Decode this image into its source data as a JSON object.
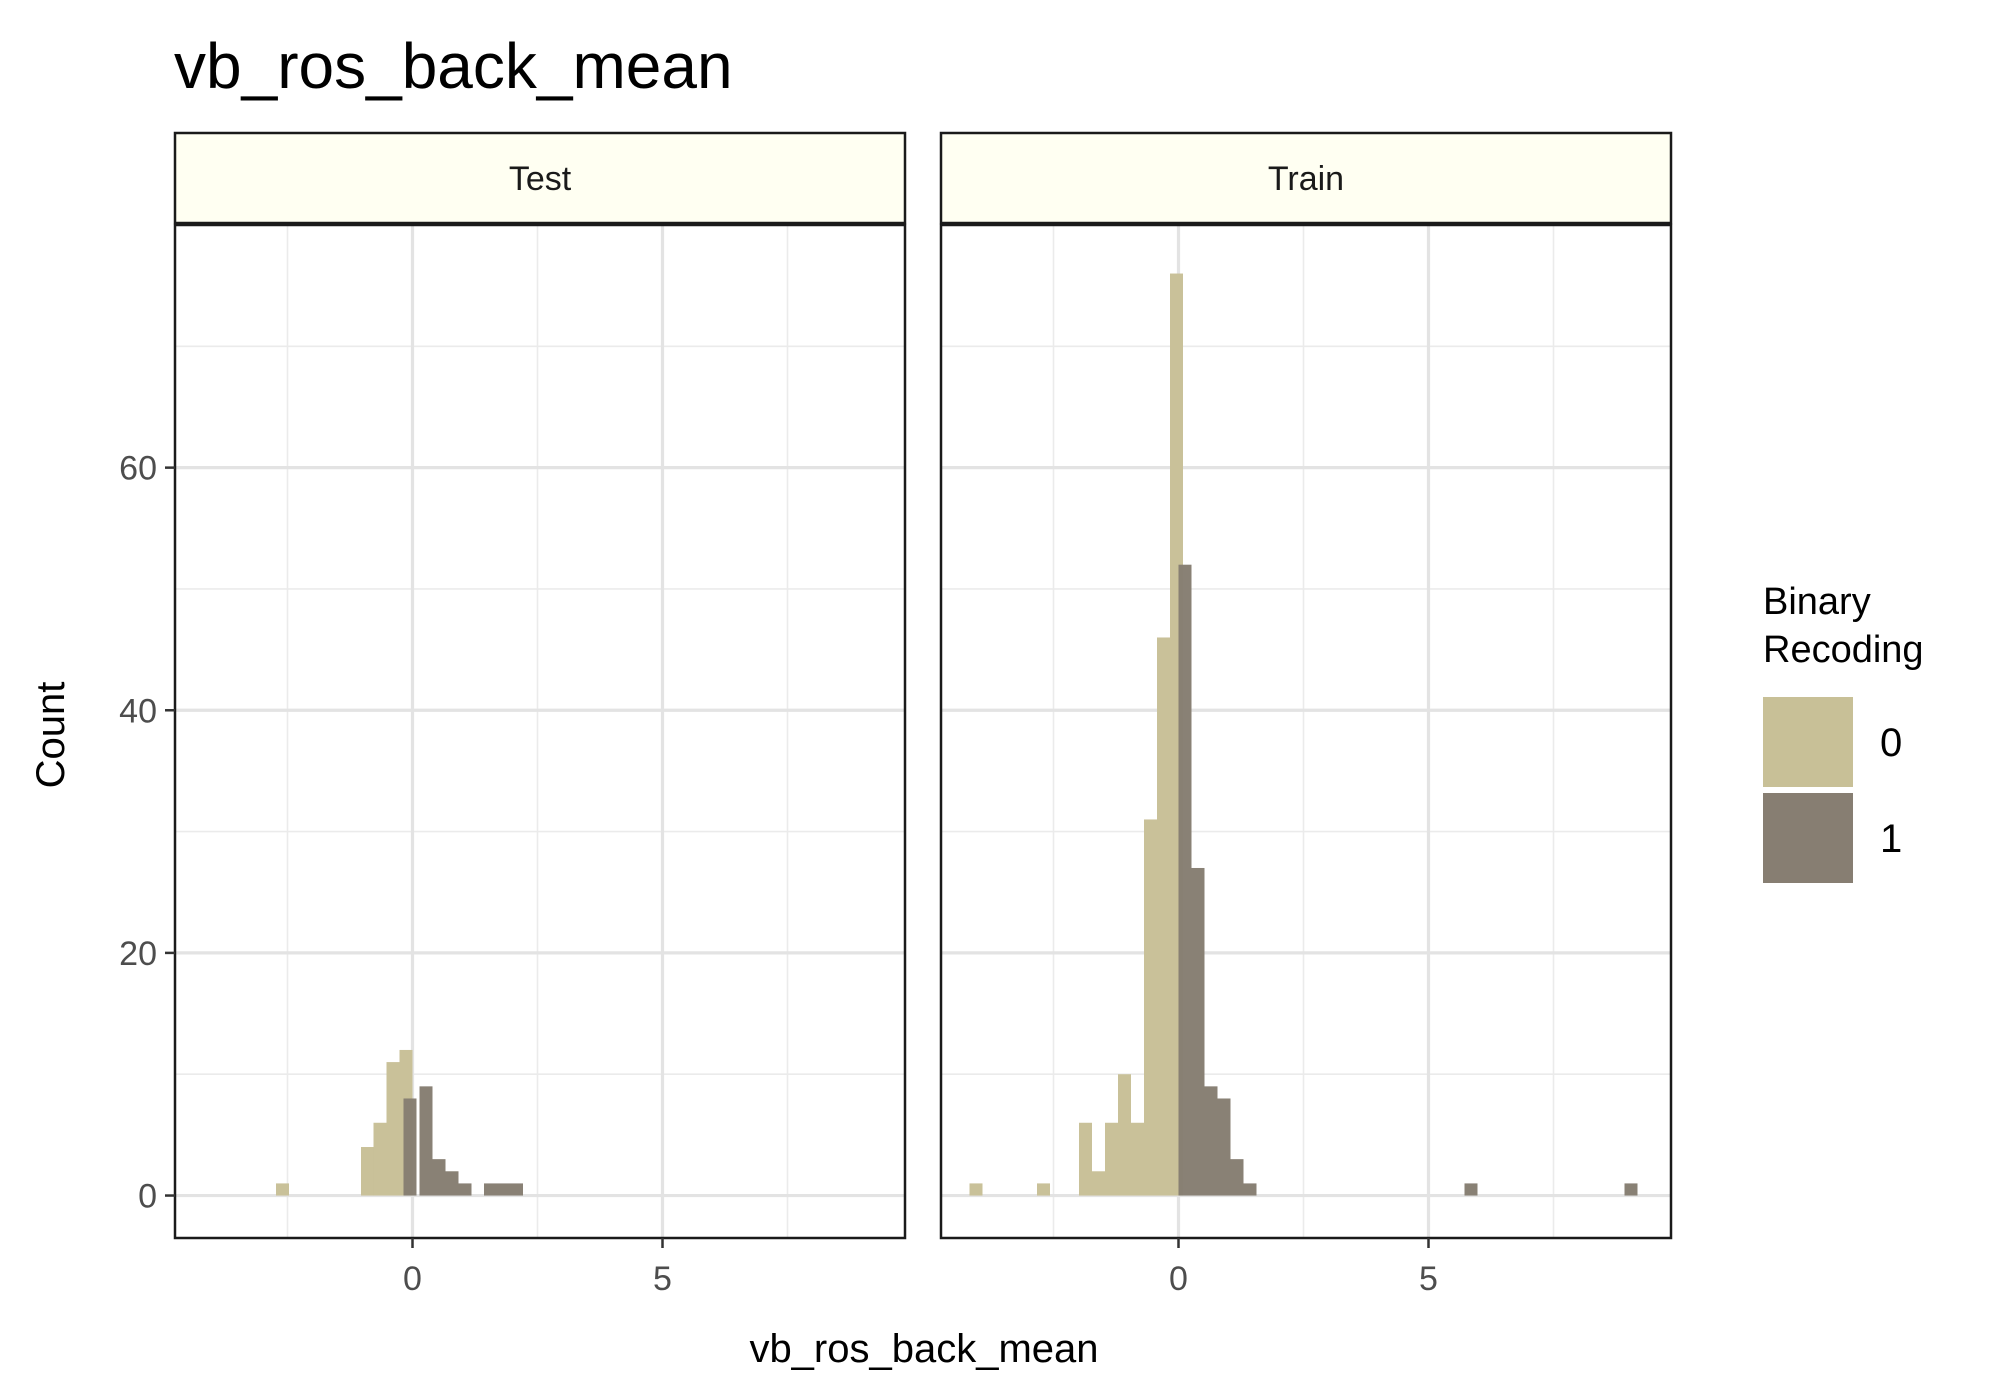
{
  "chart_data": {
    "type": "bar",
    "subtype": "histogram",
    "title": "vb_ros_back_mean",
    "xlabel": "vb_ros_back_mean",
    "ylabel": "Count",
    "xlim": [
      -4.75,
      9.85
    ],
    "ylim": [
      -3.5,
      80.0
    ],
    "x_ticks": [
      0,
      5
    ],
    "y_ticks": [
      0,
      20,
      40,
      60
    ],
    "bin_width": 0.26,
    "grid": true,
    "legend": {
      "title_lines": [
        "Binary",
        "Recoding"
      ],
      "placement": "right",
      "entries": [
        {
          "label": "0",
          "color": "#c8c097"
        },
        {
          "label": "1",
          "color": "#877e72"
        }
      ]
    },
    "panels": [
      {
        "name": "Test",
        "series": [
          {
            "name": "0",
            "color": "#c8c097",
            "bins": [
              {
                "x": -2.6,
                "y": 1
              },
              {
                "x": -0.9,
                "y": 4
              },
              {
                "x": -0.65,
                "y": 6
              },
              {
                "x": -0.39,
                "y": 11
              },
              {
                "x": -0.13,
                "y": 12
              }
            ]
          },
          {
            "name": "1",
            "color": "#877e72",
            "bins": [
              {
                "x": -0.05,
                "y": 8
              },
              {
                "x": 0.27,
                "y": 9
              },
              {
                "x": 0.53,
                "y": 3
              },
              {
                "x": 0.79,
                "y": 2
              },
              {
                "x": 1.05,
                "y": 1
              },
              {
                "x": 1.56,
                "y": 1
              },
              {
                "x": 1.82,
                "y": 1
              },
              {
                "x": 2.08,
                "y": 1
              }
            ]
          }
        ]
      },
      {
        "name": "Train",
        "series": [
          {
            "name": "0",
            "color": "#c8c097",
            "bins": [
              {
                "x": -4.05,
                "y": 1
              },
              {
                "x": -2.7,
                "y": 1
              },
              {
                "x": -1.86,
                "y": 6
              },
              {
                "x": -1.6,
                "y": 2
              },
              {
                "x": -1.34,
                "y": 6
              },
              {
                "x": -1.08,
                "y": 10
              },
              {
                "x": -0.82,
                "y": 6
              },
              {
                "x": -0.56,
                "y": 31
              },
              {
                "x": -0.3,
                "y": 46
              },
              {
                "x": -0.04,
                "y": 76
              }
            ]
          },
          {
            "name": "1",
            "color": "#877e72",
            "bins": [
              {
                "x": 0.13,
                "y": 52
              },
              {
                "x": 0.39,
                "y": 27
              },
              {
                "x": 0.65,
                "y": 9
              },
              {
                "x": 0.91,
                "y": 8
              },
              {
                "x": 1.17,
                "y": 3
              },
              {
                "x": 1.43,
                "y": 1
              },
              {
                "x": 5.85,
                "y": 1
              },
              {
                "x": 9.05,
                "y": 1
              }
            ]
          }
        ]
      }
    ]
  }
}
